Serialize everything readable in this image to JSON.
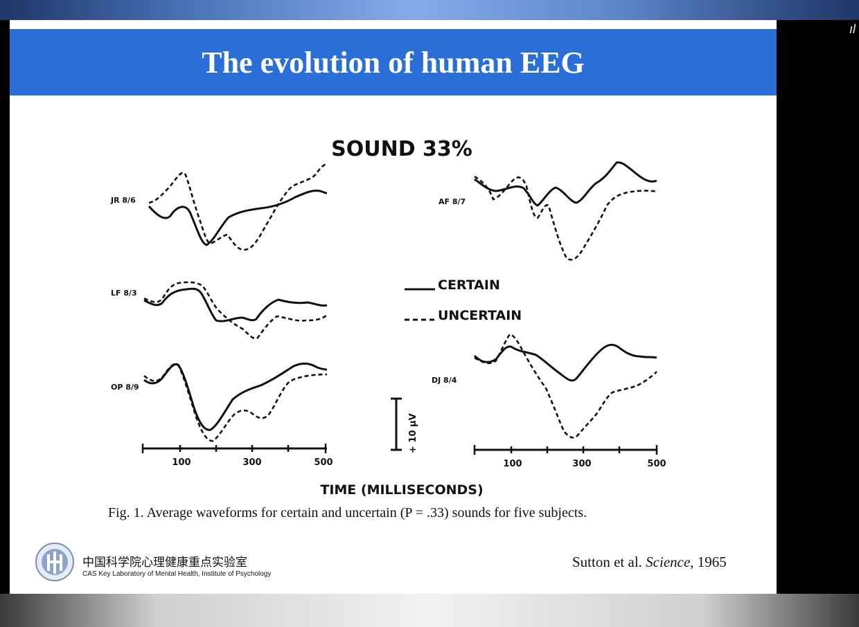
{
  "slide": {
    "title": "The evolution of human EEG",
    "caption": "Fig. 1. Average waveforms for certain and uncertain (P = .33) sounds for five subjects.",
    "citation": {
      "authors": "Sutton et al.",
      "journal": "Science,",
      "year": "1965"
    },
    "organization": {
      "name_cn": "中国科学院心理健康重点实验室",
      "name_en": "CAS Key Laboratory of Mental Health, Institute of Psychology"
    },
    "edge_glyph": "ıl"
  },
  "chart_data": {
    "type": "line",
    "title": "SOUND 33%",
    "xlabel": "TIME (MILLISECONDS)",
    "x_ticks": [
      "100",
      "300",
      "500"
    ],
    "legend": {
      "solid": "CERTAIN",
      "dashed": "UNCERTAIN",
      "placement": "center"
    },
    "scale_label": "+ 10 μV",
    "panels": [
      {
        "subject": "JR 8/6"
      },
      {
        "subject": "LF 8/3"
      },
      {
        "subject": "OP 8/9"
      },
      {
        "subject": "AF 8/7"
      },
      {
        "subject": "DJ 8/4"
      }
    ]
  }
}
